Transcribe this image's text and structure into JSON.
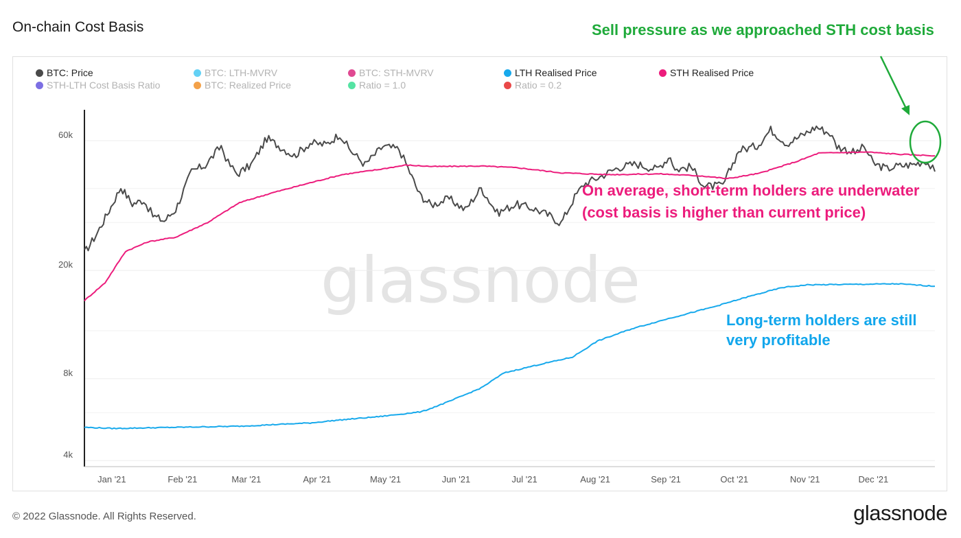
{
  "title": "On-chain Cost Basis",
  "annotations": {
    "green": "Sell pressure as we approached STH cost basis",
    "pink_line1": "On average, short-term holders are underwater",
    "pink_line2": "(cost basis is higher than current price)",
    "blue_line1": "Long-term holders are still",
    "blue_line2": "very profitable"
  },
  "watermark": "glassnode",
  "footer": "© 2022 Glassnode. All Rights Reserved.",
  "brand": "glassnode",
  "legend": [
    {
      "label": "BTC: Price",
      "color": "#4a4a4a",
      "active": true
    },
    {
      "label": "BTC: LTH-MVRV",
      "color": "#3cc5f3",
      "active": false
    },
    {
      "label": "BTC: STH-MVRV",
      "color": "#d81b77",
      "active": false
    },
    {
      "label": "LTH Realised Price",
      "color": "#17a9ec",
      "active": true
    },
    {
      "label": "STH Realised Price",
      "color": "#ec1c7c",
      "active": true
    },
    {
      "label": "STH-LTH Cost Basis Ratio",
      "color": "#5b4bdc",
      "active": false
    },
    {
      "label": "BTC: Realized Price",
      "color": "#f08a1c",
      "active": false
    },
    {
      "label": "Ratio = 1.0",
      "color": "#2bdc8c",
      "active": false
    },
    {
      "label": "Ratio = 0.2",
      "color": "#e41a1a",
      "active": false
    }
  ],
  "chart_data": {
    "type": "line",
    "y_scale": "log",
    "ylim": [
      3800,
      85000
    ],
    "xlim": [
      "2020-12-23",
      "2021-12-31"
    ],
    "y_ticks": [
      {
        "value": 4000,
        "label": "4k"
      },
      {
        "value": 8000,
        "label": "8k"
      },
      {
        "value": 20000,
        "label": "20k"
      },
      {
        "value": 60000,
        "label": "60k"
      }
    ],
    "x_ticks": [
      "Jan '21",
      "Feb '21",
      "Mar '21",
      "Apr '21",
      "May '21",
      "Jun '21",
      "Jul '21",
      "Aug '21",
      "Sep '21",
      "Oct '21",
      "Nov '21",
      "Dec '21"
    ],
    "x_tick_dates": [
      "2021-01-01",
      "2021-02-01",
      "2021-03-01",
      "2021-04-01",
      "2021-05-01",
      "2021-06-01",
      "2021-07-01",
      "2021-08-01",
      "2021-09-01",
      "2021-10-01",
      "2021-11-01",
      "2021-12-01"
    ],
    "grid": "horizontal",
    "series": [
      {
        "name": "BTC: Price",
        "color": "#4a4a4a",
        "points": [
          [
            "2020-12-23",
            23200
          ],
          [
            "2020-12-28",
            26900
          ],
          [
            "2021-01-02",
            32200
          ],
          [
            "2021-01-08",
            40500
          ],
          [
            "2021-01-13",
            35100
          ],
          [
            "2021-01-18",
            36300
          ],
          [
            "2021-01-22",
            31800
          ],
          [
            "2021-01-27",
            30400
          ],
          [
            "2021-02-01",
            33500
          ],
          [
            "2021-02-08",
            46200
          ],
          [
            "2021-02-14",
            48700
          ],
          [
            "2021-02-21",
            57400
          ],
          [
            "2021-02-24",
            49700
          ],
          [
            "2021-02-28",
            45200
          ],
          [
            "2021-03-06",
            48800
          ],
          [
            "2021-03-13",
            61200
          ],
          [
            "2021-03-18",
            57600
          ],
          [
            "2021-03-25",
            52800
          ],
          [
            "2021-04-01",
            58800
          ],
          [
            "2021-04-08",
            58000
          ],
          [
            "2021-04-14",
            63500
          ],
          [
            "2021-04-18",
            56000
          ],
          [
            "2021-04-25",
            49000
          ],
          [
            "2021-05-03",
            57200
          ],
          [
            "2021-05-10",
            55800
          ],
          [
            "2021-05-13",
            49500
          ],
          [
            "2021-05-19",
            38000
          ],
          [
            "2021-05-24",
            34800
          ],
          [
            "2021-06-01",
            36700
          ],
          [
            "2021-06-08",
            33400
          ],
          [
            "2021-06-15",
            40200
          ],
          [
            "2021-06-22",
            32500
          ],
          [
            "2021-06-30",
            35000
          ],
          [
            "2021-07-08",
            33800
          ],
          [
            "2021-07-15",
            31800
          ],
          [
            "2021-07-20",
            29800
          ],
          [
            "2021-07-26",
            37200
          ],
          [
            "2021-07-30",
            41500
          ],
          [
            "2021-08-07",
            44600
          ],
          [
            "2021-08-14",
            47800
          ],
          [
            "2021-08-22",
            49300
          ],
          [
            "2021-08-31",
            47100
          ],
          [
            "2021-09-06",
            52700
          ],
          [
            "2021-09-08",
            46900
          ],
          [
            "2021-09-15",
            48100
          ],
          [
            "2021-09-21",
            40700
          ],
          [
            "2021-09-29",
            41000
          ],
          [
            "2021-10-06",
            55300
          ],
          [
            "2021-10-14",
            57400
          ],
          [
            "2021-10-20",
            65900
          ],
          [
            "2021-10-27",
            58500
          ],
          [
            "2021-11-03",
            62900
          ],
          [
            "2021-11-09",
            67500
          ],
          [
            "2021-11-15",
            63800
          ],
          [
            "2021-11-18",
            57300
          ],
          [
            "2021-11-26",
            54100
          ],
          [
            "2021-11-30",
            57000
          ],
          [
            "2021-12-04",
            49400
          ],
          [
            "2021-12-10",
            47300
          ],
          [
            "2021-12-14",
            48300
          ],
          [
            "2021-12-21",
            49000
          ],
          [
            "2021-12-27",
            50600
          ],
          [
            "2021-12-31",
            46200
          ]
        ]
      },
      {
        "name": "STH Realised Price",
        "color": "#ec1c7c",
        "points": [
          [
            "2020-12-23",
            15500
          ],
          [
            "2021-01-01",
            18000
          ],
          [
            "2021-01-10",
            23500
          ],
          [
            "2021-01-20",
            25500
          ],
          [
            "2021-02-01",
            26500
          ],
          [
            "2021-02-15",
            30000
          ],
          [
            "2021-03-01",
            35500
          ],
          [
            "2021-03-15",
            38500
          ],
          [
            "2021-04-01",
            42000
          ],
          [
            "2021-04-15",
            45000
          ],
          [
            "2021-05-01",
            47000
          ],
          [
            "2021-05-13",
            48800
          ],
          [
            "2021-05-25",
            48200
          ],
          [
            "2021-06-15",
            48400
          ],
          [
            "2021-07-01",
            47700
          ],
          [
            "2021-07-20",
            45700
          ],
          [
            "2021-08-10",
            45000
          ],
          [
            "2021-09-01",
            45300
          ],
          [
            "2021-09-20",
            44500
          ],
          [
            "2021-10-01",
            43500
          ],
          [
            "2021-10-15",
            45500
          ],
          [
            "2021-11-01",
            50500
          ],
          [
            "2021-11-10",
            54000
          ],
          [
            "2021-12-01",
            54500
          ],
          [
            "2021-12-15",
            53500
          ],
          [
            "2021-12-31",
            52800
          ]
        ]
      },
      {
        "name": "LTH Realised Price",
        "color": "#17a9ec",
        "points": [
          [
            "2020-12-23",
            5300
          ],
          [
            "2021-01-05",
            5250
          ],
          [
            "2021-02-01",
            5300
          ],
          [
            "2021-03-01",
            5350
          ],
          [
            "2021-04-01",
            5500
          ],
          [
            "2021-04-15",
            5650
          ],
          [
            "2021-05-01",
            5800
          ],
          [
            "2021-05-20",
            6050
          ],
          [
            "2021-06-01",
            6600
          ],
          [
            "2021-06-15",
            7400
          ],
          [
            "2021-06-25",
            8400
          ],
          [
            "2021-07-10",
            9000
          ],
          [
            "2021-07-25",
            9600
          ],
          [
            "2021-08-05",
            11000
          ],
          [
            "2021-08-20",
            12200
          ],
          [
            "2021-09-05",
            13300
          ],
          [
            "2021-09-25",
            14700
          ],
          [
            "2021-10-10",
            16000
          ],
          [
            "2021-10-25",
            17300
          ],
          [
            "2021-11-05",
            17700
          ],
          [
            "2021-12-01",
            17800
          ],
          [
            "2021-12-15",
            17850
          ],
          [
            "2021-12-31",
            17500
          ]
        ]
      }
    ]
  }
}
